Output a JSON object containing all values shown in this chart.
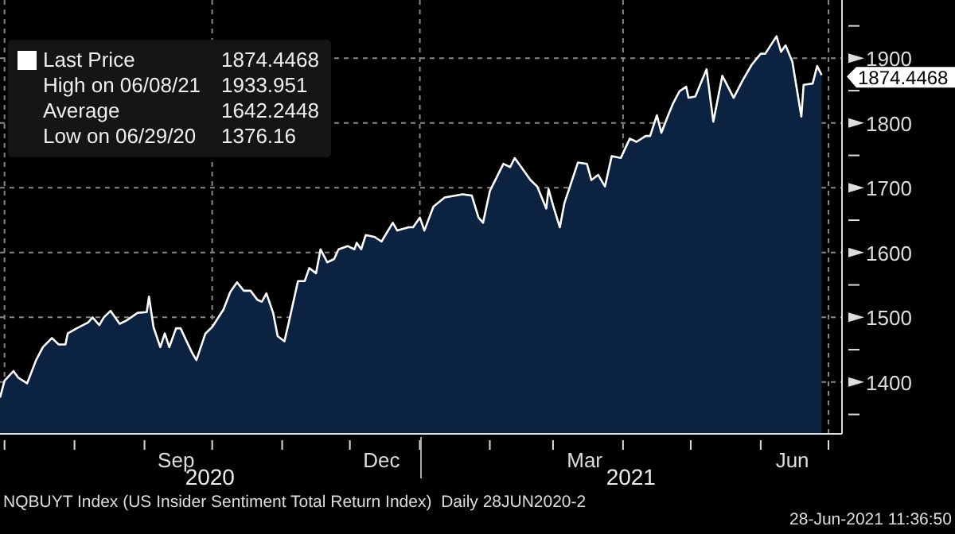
{
  "chart_data": {
    "type": "area",
    "x": [
      "2020-06-29",
      "2020-07-01",
      "2020-07-05",
      "2020-07-07",
      "2020-07-11",
      "2020-07-15",
      "2020-07-18",
      "2020-07-22",
      "2020-07-25",
      "2020-07-28",
      "2020-07-29",
      "2020-08-02",
      "2020-08-07",
      "2020-08-09",
      "2020-08-12",
      "2020-08-14",
      "2020-08-17",
      "2020-08-21",
      "2020-08-24",
      "2020-08-29",
      "2020-09-02",
      "2020-09-03",
      "2020-09-05",
      "2020-09-08",
      "2020-09-10",
      "2020-09-12",
      "2020-09-15",
      "2020-09-17",
      "2020-09-19",
      "2020-09-22",
      "2020-09-24",
      "2020-09-28",
      "2020-10-01",
      "2020-10-06",
      "2020-10-09",
      "2020-10-12",
      "2020-10-15",
      "2020-10-18",
      "2020-10-21",
      "2020-10-23",
      "2020-10-25",
      "2020-10-28",
      "2020-10-30",
      "2020-11-02",
      "2020-11-04",
      "2020-11-08",
      "2020-11-11",
      "2020-11-13",
      "2020-11-16",
      "2020-11-18",
      "2020-11-21",
      "2020-11-24",
      "2020-11-26",
      "2020-11-30",
      "2020-12-03",
      "2020-12-04",
      "2020-12-06",
      "2020-12-08",
      "2020-12-12",
      "2020-12-15",
      "2020-12-20",
      "2020-12-22",
      "2020-12-27",
      "2020-12-29",
      "2021-01-01",
      "2021-01-03",
      "2021-01-07",
      "2021-01-12",
      "2021-01-20",
      "2021-01-24",
      "2021-01-27",
      "2021-01-29",
      "2021-02-01",
      "2021-02-07",
      "2021-02-10",
      "2021-02-12",
      "2021-02-19",
      "2021-02-22",
      "2021-02-26",
      "2021-02-27",
      "2021-03-01",
      "2021-03-04",
      "2021-03-06",
      "2021-03-12",
      "2021-03-16",
      "2021-03-18",
      "2021-03-21",
      "2021-03-24",
      "2021-03-27",
      "2021-03-31",
      "2021-04-04",
      "2021-04-07",
      "2021-04-11",
      "2021-04-13",
      "2021-04-16",
      "2021-04-18",
      "2021-04-21",
      "2021-04-23",
      "2021-04-26",
      "2021-04-29",
      "2021-04-30",
      "2021-05-03",
      "2021-05-08",
      "2021-05-11",
      "2021-05-15",
      "2021-05-20",
      "2021-05-24",
      "2021-05-28",
      "2021-06-01",
      "2021-06-03",
      "2021-06-08",
      "2021-06-10",
      "2021-06-12",
      "2021-06-15",
      "2021-06-19",
      "2021-06-20",
      "2021-06-24",
      "2021-06-26",
      "2021-06-28"
    ],
    "series": [
      {
        "name": "Last Price",
        "color": "#ffffff",
        "values": [
          1376,
          1402,
          1417,
          1407,
          1398,
          1434,
          1454,
          1468,
          1458,
          1458,
          1475,
          1483,
          1492,
          1500,
          1488,
          1500,
          1510,
          1490,
          1495,
          1507,
          1508,
          1532,
          1485,
          1454,
          1475,
          1454,
          1483,
          1483,
          1468,
          1446,
          1434,
          1475,
          1485,
          1512,
          1539,
          1554,
          1541,
          1541,
          1527,
          1524,
          1537,
          1507,
          1471,
          1463,
          1493,
          1556,
          1556,
          1576,
          1568,
          1605,
          1585,
          1590,
          1605,
          1610,
          1605,
          1615,
          1605,
          1627,
          1624,
          1617,
          1646,
          1634,
          1639,
          1639,
          1654,
          1634,
          1671,
          1685,
          1690,
          1688,
          1654,
          1646,
          1695,
          1737,
          1732,
          1746,
          1712,
          1702,
          1668,
          1698,
          1673,
          1639,
          1676,
          1739,
          1737,
          1712,
          1720,
          1702,
          1749,
          1746,
          1776,
          1771,
          1780,
          1780,
          1812,
          1785,
          1812,
          1829,
          1849,
          1856,
          1839,
          1841,
          1883,
          1802,
          1873,
          1839,
          1866,
          1890,
          1907,
          1907,
          1934,
          1910,
          1920,
          1895,
          1810,
          1859,
          1861,
          1888,
          1874
        ]
      }
    ],
    "xlim": [
      "2020-06-29",
      "2021-07-07"
    ],
    "xticks": [
      {
        "value": "2020-07-01",
        "label": null
      },
      {
        "value": "2020-08-01",
        "label": null
      },
      {
        "value": "2020-09-01",
        "label": null
      },
      {
        "value": "2020-09-15",
        "label": "Sep"
      },
      {
        "value": "2020-10-01",
        "label": null
      },
      {
        "value": "2020-11-01",
        "label": null
      },
      {
        "value": "2020-12-01",
        "label": null
      },
      {
        "value": "2020-12-15",
        "label": "Dec"
      },
      {
        "value": "2021-01-01",
        "label": null
      },
      {
        "value": "2021-02-01",
        "label": null
      },
      {
        "value": "2021-03-01",
        "label": null
      },
      {
        "value": "2021-03-15",
        "label": "Mar"
      },
      {
        "value": "2021-04-01",
        "label": null
      },
      {
        "value": "2021-05-01",
        "label": null
      },
      {
        "value": "2021-06-01",
        "label": null
      },
      {
        "value": "2021-06-15",
        "label": "Jun"
      },
      {
        "value": "2021-07-01",
        "label": null
      }
    ],
    "ylim": [
      1320,
      1990
    ],
    "yticks": [
      {
        "value": 1350,
        "label": null
      },
      1400,
      {
        "value": 1450,
        "label": null
      },
      1500,
      {
        "value": 1550,
        "label": null
      },
      1600,
      {
        "value": 1650,
        "label": null
      },
      1700,
      {
        "value": 1750,
        "label": null
      },
      1800,
      {
        "value": 1850,
        "label": null
      },
      1900,
      {
        "value": 1950,
        "label": null
      }
    ],
    "grid": true,
    "legend": "top left",
    "annotations": [
      "1874.4468",
      "High on 06/08/21",
      "1933.951",
      "Average",
      "1642.2448",
      "Low on 06/29/20",
      "1376.16",
      {
        "text": "1874.4468",
        "x": "2021-06-28",
        "y": 1874.4468
      },
      "2020",
      "2021",
      "NQBUYT Index (US Insider Sentiment Total Return Index)  Daily 28JUN2020-2",
      "28-Jun-2021 11:36:50"
    ]
  }
}
